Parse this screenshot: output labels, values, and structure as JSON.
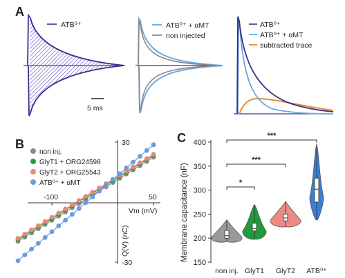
{
  "figure": {
    "panel_labels": {
      "a": "A",
      "b": "B",
      "c": "C"
    }
  },
  "panel_a": {
    "scale_bar": "5 ms",
    "trace_1": {
      "legend": [
        "ATB⁰⁺"
      ]
    },
    "trace_2": {
      "legend": [
        "ATB⁰⁺ + αMT",
        "non injected"
      ]
    },
    "trace_3": {
      "legend": [
        "ATB⁰⁺",
        "ATB⁰⁺ + αMT",
        "subtracted trace"
      ]
    },
    "colors": {
      "atb": "#3a2f8f",
      "atb_hatch": "#7468c8",
      "amt": "#6aa8e0",
      "non_injected": "#8a8a8a",
      "subtracted": "#e88a2e"
    }
  },
  "chart_data": [
    {
      "type": "scatter",
      "panel": "B",
      "xlabel": "Vm (mV)",
      "ylabel": "Q(V) (nC)",
      "x_tick_labels": [
        "-100",
        "50"
      ],
      "y_tick_labels": [
        "30",
        "-30"
      ],
      "xlim": [
        -155,
        55
      ],
      "ylim": [
        -32,
        32
      ],
      "series": [
        {
          "name": "non inj.",
          "color": "#8a8a8a",
          "x": [
            -150,
            -140,
            -130,
            -120,
            -110,
            -100,
            -90,
            -80,
            -70,
            -60,
            -50,
            -40,
            -30,
            -20,
            -10,
            0,
            10,
            20,
            30,
            40,
            50
          ],
          "y": [
            -19.6,
            -17.5,
            -15.4,
            -13.3,
            -11.2,
            -9.1,
            -7.0,
            -4.9,
            -2.8,
            -0.7,
            1.4,
            3.5,
            5.6,
            7.7,
            9.8,
            11.9,
            14.0,
            16.1,
            18.2,
            20.3,
            22.4
          ]
        },
        {
          "name": "GlyT1 + ORG24598",
          "color": "#2a9a3a",
          "x": [
            -150,
            -140,
            -130,
            -120,
            -110,
            -100,
            -90,
            -80,
            -70,
            -60,
            -50,
            -40,
            -30,
            -20,
            -10,
            0,
            10,
            20,
            30,
            40,
            50
          ],
          "y": [
            -18.7,
            -16.6,
            -14.5,
            -12.4,
            -10.3,
            -8.2,
            -6.1,
            -4.0,
            -1.9,
            0.2,
            2.3,
            4.4,
            6.5,
            8.6,
            10.7,
            12.8,
            14.9,
            17.0,
            19.1,
            21.2,
            23.3
          ]
        },
        {
          "name": "GlyT2 + ORG25543",
          "color": "#e8877a",
          "x": [
            -150,
            -140,
            -130,
            -120,
            -110,
            -100,
            -90,
            -80,
            -70,
            -60,
            -50,
            -40,
            -30,
            -20,
            -10,
            0,
            10,
            20,
            30,
            40,
            50
          ],
          "y": [
            -18.1,
            -16.0,
            -13.9,
            -11.8,
            -9.7,
            -7.6,
            -5.5,
            -3.4,
            -1.3,
            0.8,
            2.9,
            5.0,
            7.1,
            9.2,
            11.3,
            13.4,
            15.5,
            17.6,
            19.7,
            21.8,
            23.9
          ]
        },
        {
          "name": "ATB⁰⁺ + αMT",
          "color": "#6a9be0",
          "x": [
            -150,
            -140,
            -130,
            -120,
            -110,
            -100,
            -90,
            -80,
            -70,
            -60,
            -50,
            -40,
            -30,
            -20,
            -10,
            0,
            10,
            20,
            30,
            40,
            50
          ],
          "y": [
            -29.3,
            -26.4,
            -23.5,
            -20.6,
            -17.7,
            -14.8,
            -11.9,
            -9.0,
            -6.1,
            -3.2,
            -0.3,
            2.6,
            5.5,
            8.4,
            11.3,
            14.2,
            17.1,
            20.0,
            22.9,
            25.8,
            28.7
          ]
        }
      ]
    },
    {
      "type": "violin",
      "panel": "C",
      "ylabel": "Membrane capacitance (nF)",
      "y_tick_labels": [
        "150",
        "200",
        "250",
        "300",
        "350",
        "400"
      ],
      "ylim": [
        150,
        410
      ],
      "categories": [
        "non inj.",
        "GlyT1",
        "GlyT2",
        "ATB⁰⁺"
      ],
      "groups": [
        {
          "color": "#9a9a9a",
          "min": 193,
          "q1": 200,
          "median": 205,
          "q3": 216,
          "max": 238
        },
        {
          "color": "#1f9a3c",
          "min": 198,
          "q1": 215,
          "median": 220,
          "q3": 231,
          "max": 270
        },
        {
          "color": "#ec8a86",
          "min": 224,
          "q1": 236,
          "median": 242,
          "q3": 250,
          "max": 276
        },
        {
          "color": "#3a7fd6",
          "min": 238,
          "q1": 275,
          "median": 302,
          "q3": 325,
          "max": 395
        }
      ],
      "significance": [
        {
          "label": "*",
          "pair": [
            "non inj.",
            "GlyT1"
          ]
        },
        {
          "label": "***",
          "pair": [
            "non inj.",
            "GlyT2"
          ]
        },
        {
          "label": "***",
          "pair": [
            "non inj.",
            "ATB⁰⁺"
          ]
        }
      ]
    }
  ]
}
